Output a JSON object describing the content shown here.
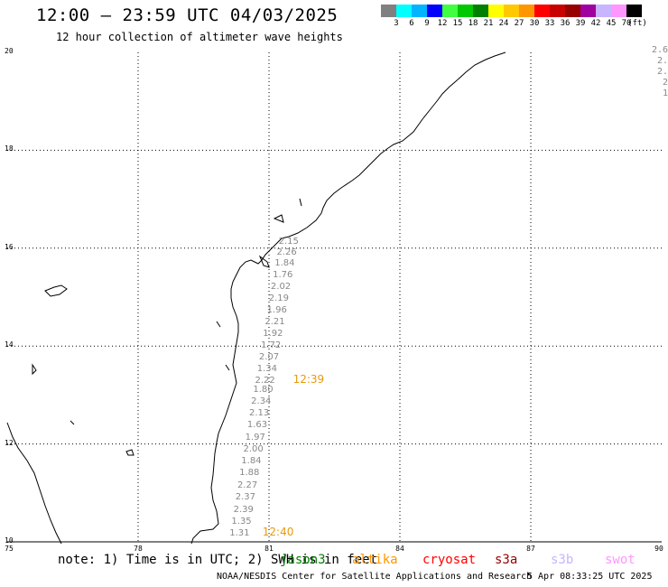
{
  "header": {
    "title": "12:00 – 23:59 UTC 04/03/2025",
    "subtitle": "12 hour collection of altimeter wave heights"
  },
  "colorbar": {
    "swatches": [
      "#808080",
      "#00ffff",
      "#00b4ff",
      "#0000ff",
      "#40ff40",
      "#00c800",
      "#008000",
      "#ffff00",
      "#ffc800",
      "#ff9600",
      "#ff0000",
      "#c80000",
      "#960000",
      "#a000a0",
      "#c8b4ff",
      "#ff96ff",
      "#000000"
    ],
    "labels": [
      "3",
      "6",
      "9",
      "12",
      "15",
      "18",
      "21",
      "24",
      "27",
      "30",
      "33",
      "36",
      "39",
      "42",
      "45",
      "70",
      "(ft)"
    ]
  },
  "axes": {
    "y_labels": [
      "20",
      "18",
      "16",
      "14",
      "12",
      "10"
    ],
    "x_labels": [
      "75",
      "78",
      "81",
      "84",
      "87",
      "90"
    ]
  },
  "swh_track": [
    {
      "lat": 16.16,
      "v": "2.15"
    },
    {
      "lat": 15.94,
      "v": "2.26"
    },
    {
      "lat": 15.72,
      "v": "1.84"
    },
    {
      "lat": 15.48,
      "v": "1.76"
    },
    {
      "lat": 15.24,
      "v": "2.02"
    },
    {
      "lat": 15.0,
      "v": "2.19"
    },
    {
      "lat": 14.76,
      "v": "1.96"
    },
    {
      "lat": 14.52,
      "v": "2.21"
    },
    {
      "lat": 14.28,
      "v": "1.92"
    },
    {
      "lat": 14.04,
      "v": "1.72"
    },
    {
      "lat": 13.8,
      "v": "2.07"
    },
    {
      "lat": 13.56,
      "v": "1.34"
    },
    {
      "lat": 13.32,
      "v": "2.22"
    },
    {
      "lat": 13.14,
      "v": "1.80"
    },
    {
      "lat": 12.9,
      "v": "2.34"
    },
    {
      "lat": 12.66,
      "v": "2.13"
    },
    {
      "lat": 12.42,
      "v": "1.63"
    },
    {
      "lat": 12.16,
      "v": "1.97"
    },
    {
      "lat": 11.92,
      "v": "2.00"
    },
    {
      "lat": 11.68,
      "v": "1.84"
    },
    {
      "lat": 11.44,
      "v": "1.88"
    },
    {
      "lat": 11.18,
      "v": "2.27"
    },
    {
      "lat": 10.94,
      "v": "2.37"
    },
    {
      "lat": 10.68,
      "v": "2.39"
    },
    {
      "lat": 10.44,
      "v": "1.35"
    },
    {
      "lat": 10.2,
      "v": "1.31"
    }
  ],
  "altika_labels": [
    {
      "lat": 13.32,
      "lon": 81.55,
      "v": "12:39"
    },
    {
      "lat": 10.2,
      "lon": 80.85,
      "v": "12:40"
    }
  ],
  "edge_values": [
    "2.6",
    "2.",
    "2.",
    "2",
    "1"
  ],
  "footer": {
    "note": "note: 1) Time is in UTC; 2) SWH is in feet",
    "credit": "NOAA/NESDIS Center for Satellite Applications and Research",
    "timestamp": "5 Apr 08:33:25 UTC 2025"
  },
  "legend": [
    {
      "name": "jason3",
      "color": "#008000"
    },
    {
      "name": "altika",
      "color": "#ff9600"
    },
    {
      "name": "cryosat",
      "color": "#ff0000"
    },
    {
      "name": "s3a",
      "color": "#960000"
    },
    {
      "name": "s3b",
      "color": "#c8b4ff"
    },
    {
      "name": "swot",
      "color": "#ff96ff"
    }
  ]
}
